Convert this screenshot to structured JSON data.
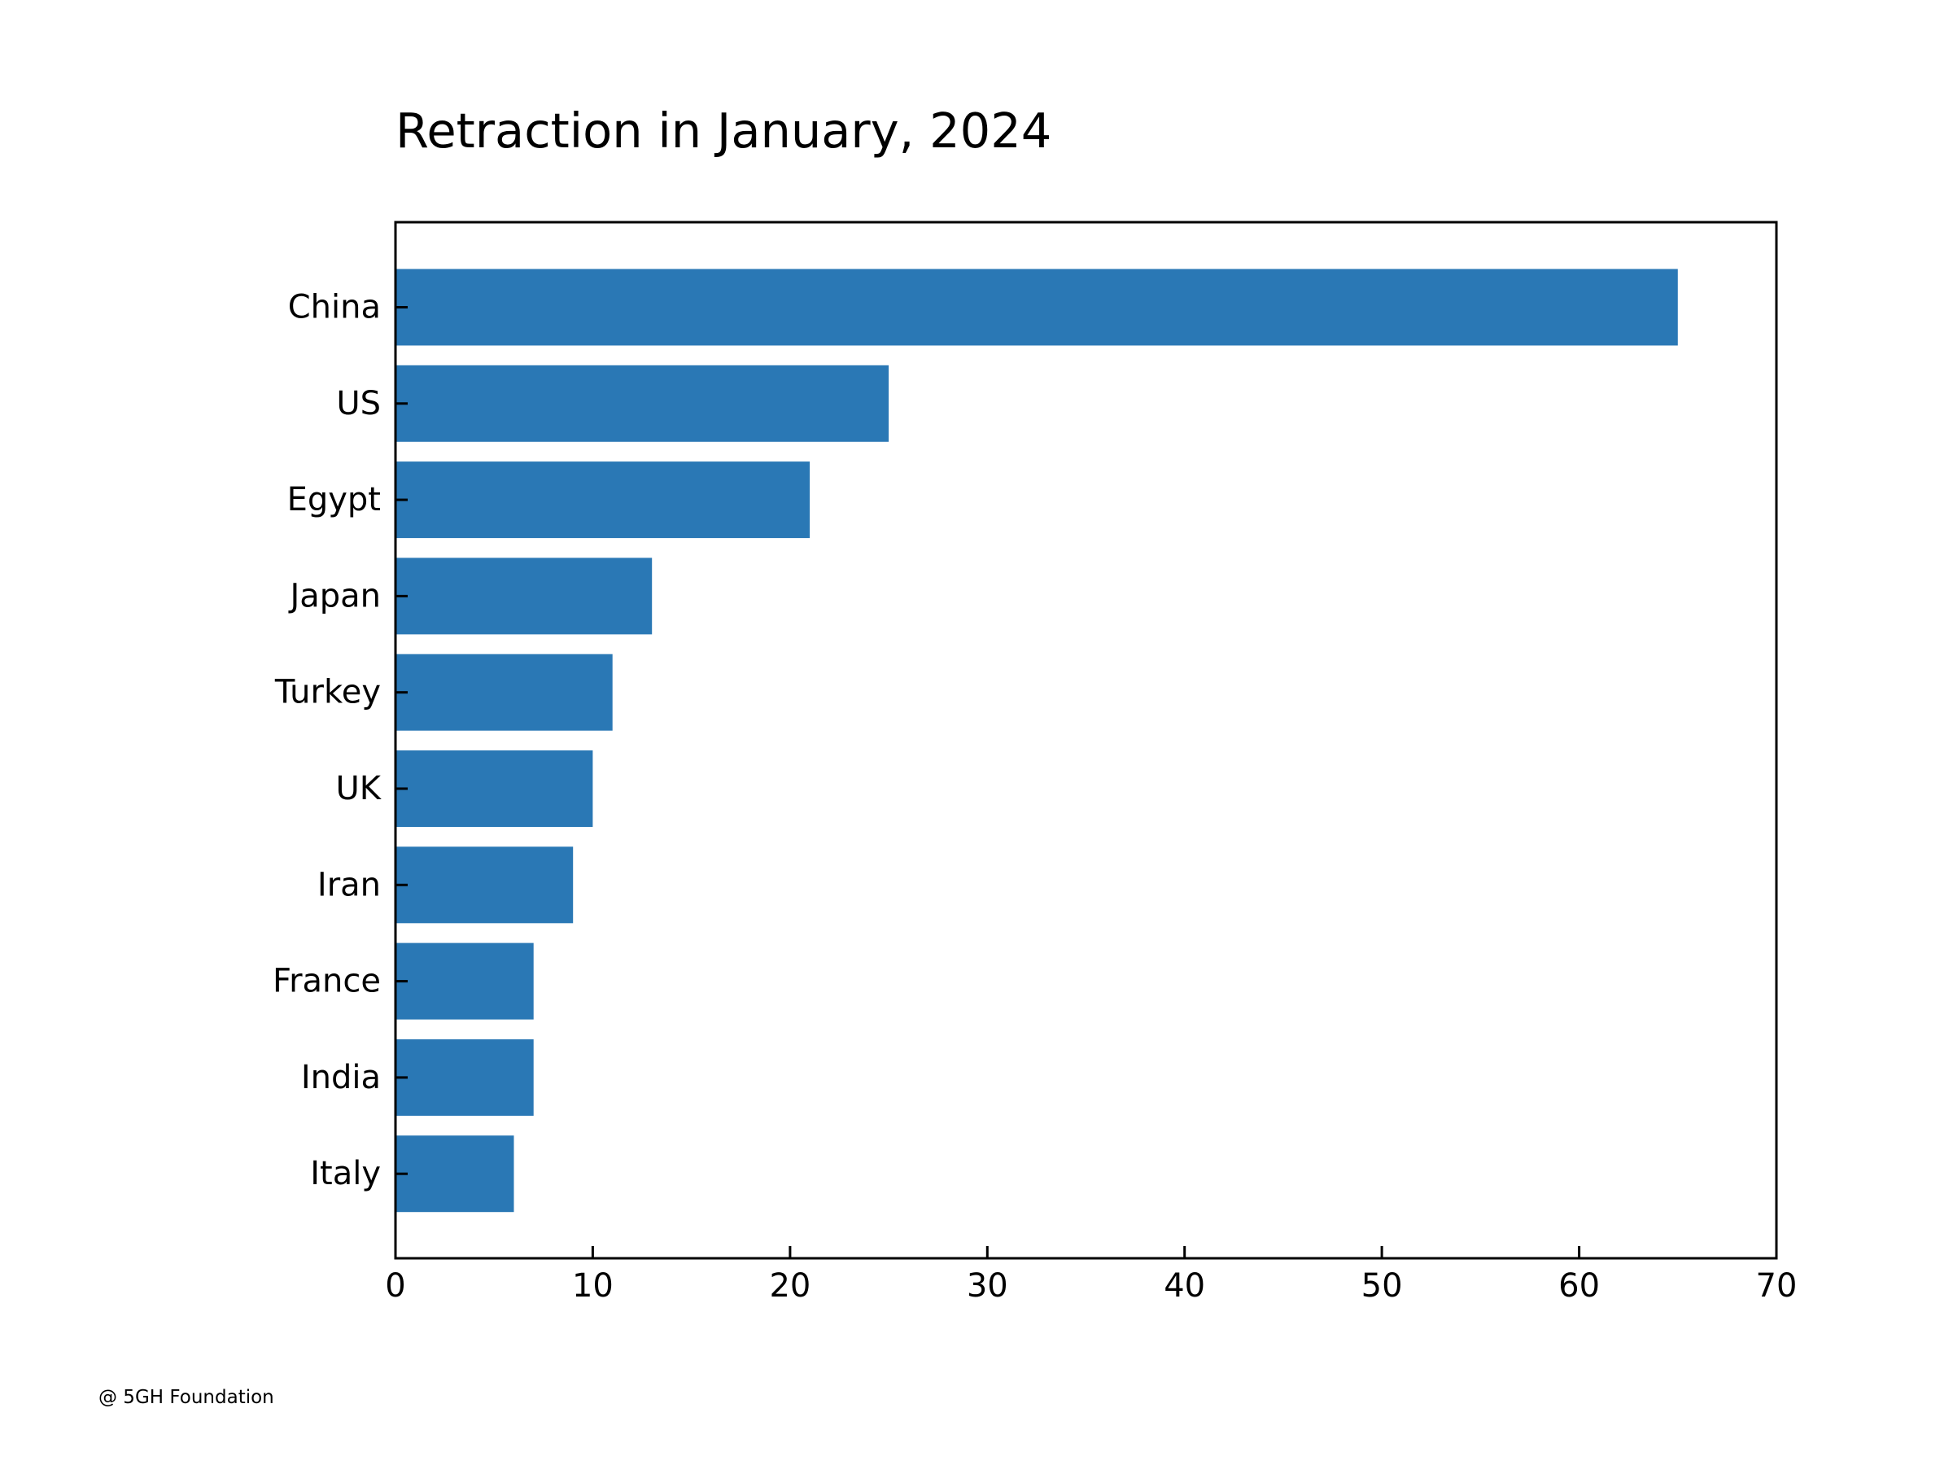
{
  "chart_data": {
    "type": "bar",
    "orientation": "horizontal",
    "title": "Retraction in January, 2024",
    "xlabel": "",
    "ylabel": "",
    "categories": [
      "China",
      "US",
      "Egypt",
      "Japan",
      "Turkey",
      "UK",
      "Iran",
      "France",
      "India",
      "Italy"
    ],
    "values": [
      65,
      25,
      21,
      13,
      11,
      10,
      9,
      7,
      7,
      6
    ],
    "xlim": [
      0,
      70
    ],
    "xticks": [
      0,
      10,
      20,
      30,
      40,
      50,
      60,
      70
    ],
    "grid": false,
    "legend": "none",
    "bar_color": "#2a78b5"
  },
  "credit": "@ 5GH Foundation"
}
